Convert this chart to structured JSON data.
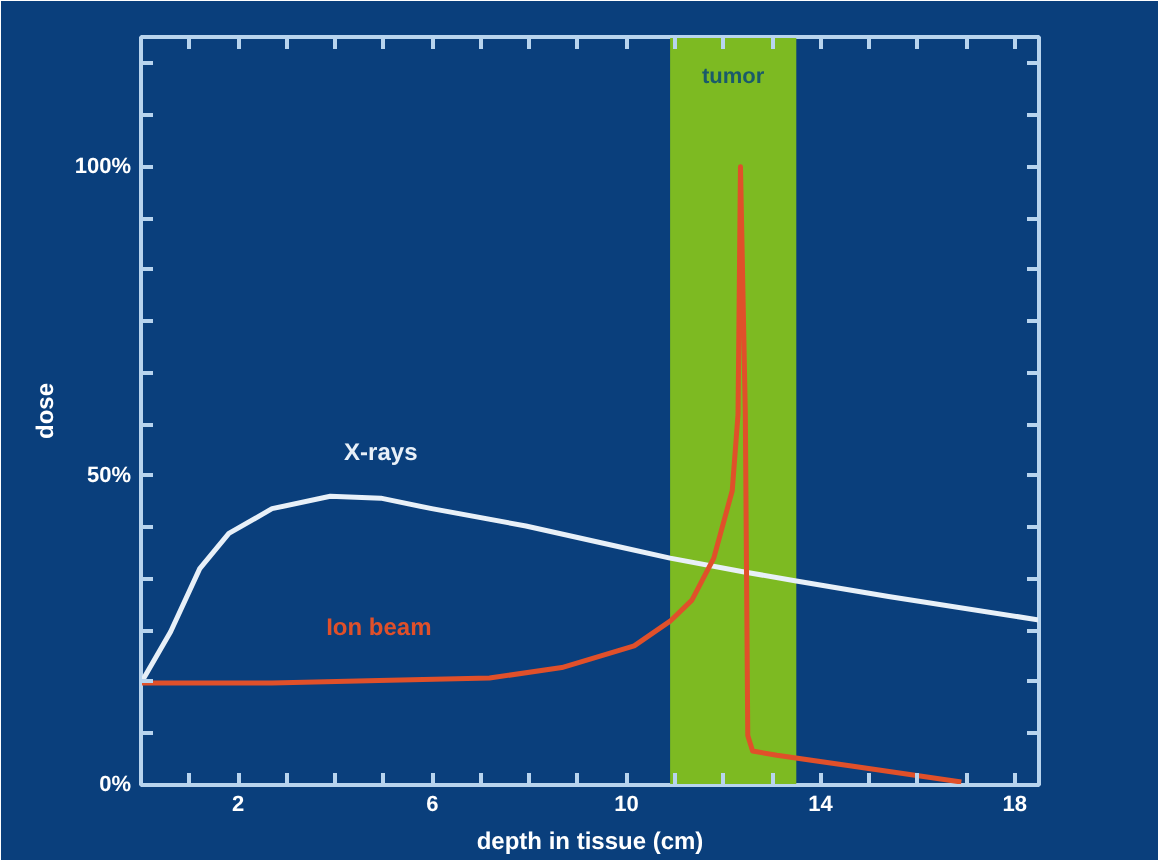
{
  "chart_data": {
    "type": "line",
    "xlabel": "depth in tissue (cm)",
    "ylabel": "dose",
    "xlim": [
      0,
      18.5
    ],
    "ylim": [
      0,
      121
    ],
    "xticks": [
      {
        "value": 1,
        "label": null
      },
      2,
      {
        "value": 3,
        "label": null
      },
      {
        "value": 4,
        "label": null
      },
      {
        "value": 5,
        "label": null
      },
      6,
      {
        "value": 7,
        "label": null
      },
      {
        "value": 8,
        "label": null
      },
      {
        "value": 9,
        "label": null
      },
      10,
      {
        "value": 11,
        "label": null
      },
      {
        "value": 12,
        "label": null
      },
      {
        "value": 13,
        "label": null
      },
      14,
      {
        "value": 15,
        "label": null
      },
      {
        "value": 16,
        "label": null
      },
      {
        "value": 17,
        "label": null
      },
      18
    ],
    "yticks": [
      {
        "value": 0,
        "label": "0%"
      },
      {
        "value": 8.33,
        "label": null
      },
      {
        "value": 16.67,
        "label": null
      },
      {
        "value": 25,
        "label": null
      },
      {
        "value": 33.33,
        "label": null
      },
      {
        "value": 41.67,
        "label": null
      },
      {
        "value": 50,
        "label": "50%"
      },
      {
        "value": 58.33,
        "label": null
      },
      {
        "value": 66.67,
        "label": null
      },
      {
        "value": 75,
        "label": null
      },
      {
        "value": 83.33,
        "label": null
      },
      {
        "value": 91.67,
        "label": null
      },
      {
        "value": 100,
        "label": "100%"
      },
      {
        "value": 108.33,
        "label": null
      },
      {
        "value": 116.67,
        "label": null
      }
    ],
    "bands": [
      {
        "axis": "x",
        "from": 10.9,
        "to": 13.5,
        "label": "tumor",
        "color": "#7dba22"
      }
    ],
    "series": [
      {
        "name": "X-rays",
        "color": "#e8f0f8",
        "x": [
          0,
          0.61,
          1.21,
          1.81,
          2.7,
          3.9,
          4.94,
          5.99,
          7.93,
          9.87,
          10.9,
          12.4,
          13.5,
          15.4,
          18.5
        ],
        "values": [
          16.5,
          24.8,
          35.0,
          40.7,
          44.7,
          46.7,
          46.4,
          44.7,
          41.9,
          38.5,
          36.7,
          34.5,
          33.0,
          30.5,
          26.7
        ]
      },
      {
        "name": "Ion beam",
        "color": "#e0502a",
        "x": [
          0,
          2.7,
          4.9,
          7.18,
          8.67,
          10.16,
          10.9,
          11.35,
          11.8,
          12.18,
          12.3,
          12.35,
          12.45,
          12.5,
          12.6,
          13.1,
          14.6,
          16.9
        ],
        "values": [
          16.5,
          16.5,
          16.9,
          17.3,
          19.0,
          22.5,
          26.5,
          29.9,
          36.7,
          47.6,
          60,
          100,
          60,
          8,
          5.5,
          4.8,
          3.1,
          0.5
        ]
      }
    ],
    "grid": false,
    "marker": "none",
    "line_style": "solid"
  }
}
